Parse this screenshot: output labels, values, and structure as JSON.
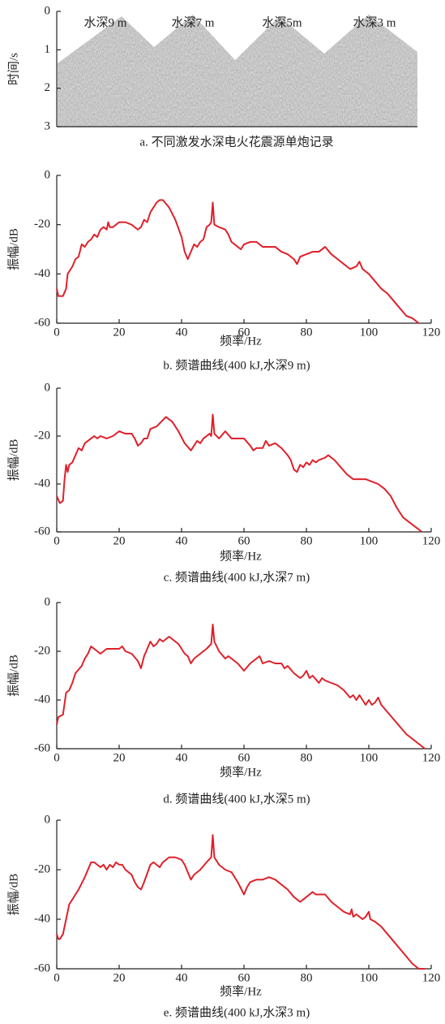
{
  "chart_data": [
    {
      "type": "image",
      "ylabel": "时间/s",
      "ylim": [
        0,
        3
      ],
      "yticks": [
        0,
        1,
        2,
        3
      ],
      "annotations": [
        "水深9 m",
        "水深7 m",
        "水深5m",
        "水深3 m"
      ],
      "caption": "a. 不同激发水深电火花震源单炮记录"
    },
    {
      "type": "line",
      "xlabel": "频率/Hz",
      "ylabel": "振幅/dB",
      "caption": "b. 频谱曲线(400 kJ,水深9 m)",
      "color": "#e0202a",
      "xlim": [
        0,
        120
      ],
      "xticks": [
        0,
        20,
        40,
        60,
        80,
        100,
        120
      ],
      "ylim": [
        -60,
        0
      ],
      "yticks": [
        0,
        -20,
        -40,
        -60
      ],
      "x": [
        0,
        0.5,
        2,
        3,
        3.5,
        5,
        6,
        7,
        8,
        9,
        10,
        11,
        12,
        13,
        14,
        15,
        16,
        16.5,
        17,
        18,
        20,
        22,
        24,
        26,
        27,
        28,
        29,
        30,
        32,
        33,
        34,
        36,
        38,
        40,
        41,
        42,
        43,
        44,
        45,
        46,
        47,
        48,
        49,
        49.5,
        50,
        50.5,
        52,
        54,
        55,
        56,
        58,
        59,
        60,
        62,
        64,
        65,
        66,
        68,
        70,
        72,
        74,
        76,
        77,
        78,
        80,
        82,
        84,
        86,
        88,
        90,
        92,
        94,
        96,
        97,
        98,
        100,
        102,
        104,
        106,
        108,
        110,
        112,
        114,
        116
      ],
      "values": [
        -46,
        -49,
        -49,
        -46,
        -40,
        -37,
        -34,
        -33,
        -28,
        -29,
        -27,
        -26,
        -24,
        -25,
        -22,
        -21,
        -22,
        -19,
        -21,
        -21,
        -19,
        -19,
        -20,
        -22,
        -21,
        -18,
        -19,
        -15,
        -11,
        -10,
        -10,
        -13,
        -18,
        -25,
        -31,
        -34,
        -31,
        -28,
        -29,
        -27,
        -26,
        -21,
        -20,
        -19,
        -11,
        -20,
        -21,
        -22,
        -24,
        -27,
        -29,
        -30,
        -28,
        -27,
        -27,
        -28,
        -29,
        -29,
        -29,
        -31,
        -32,
        -34,
        -36,
        -33,
        -32,
        -31,
        -31,
        -29,
        -32,
        -34,
        -36,
        -38,
        -37,
        -35,
        -38,
        -40,
        -43,
        -46,
        -48,
        -51,
        -54,
        -57,
        -58,
        -60
      ]
    },
    {
      "type": "line",
      "xlabel": "频率/Hz",
      "ylabel": "振幅/dB",
      "caption": "c. 频谱曲线(400 kJ,水深7 m)",
      "color": "#e0202a",
      "xlim": [
        0,
        120
      ],
      "xticks": [
        0,
        20,
        40,
        60,
        80,
        100,
        120
      ],
      "ylim": [
        -60,
        0
      ],
      "yticks": [
        0,
        -20,
        -40,
        -60
      ],
      "x": [
        0,
        1,
        2,
        2.5,
        3,
        3.5,
        4,
        5,
        6,
        7,
        8,
        9,
        10,
        11,
        12,
        13,
        14,
        16,
        18,
        20,
        22,
        24,
        25,
        26,
        27,
        28,
        29,
        30,
        32,
        35,
        37,
        39,
        41,
        43,
        44,
        45,
        46,
        47,
        48,
        49,
        49.5,
        50,
        50.5,
        52,
        54,
        56,
        58,
        60,
        62,
        63,
        64,
        66,
        67,
        68,
        70,
        72,
        74,
        75,
        76,
        77,
        78,
        79,
        80,
        81,
        82,
        83,
        84,
        86,
        87,
        89,
        91,
        93,
        95,
        97,
        99,
        101,
        103,
        105,
        107,
        109,
        111,
        113,
        115,
        117
      ],
      "values": [
        -45,
        -48,
        -47,
        -38,
        -32,
        -35,
        -32,
        -31,
        -28,
        -25,
        -26,
        -23,
        -22,
        -21,
        -20,
        -21,
        -20,
        -21,
        -20,
        -18,
        -19,
        -19,
        -21,
        -24,
        -23,
        -21,
        -21,
        -17,
        -16,
        -12,
        -14,
        -18,
        -23,
        -26,
        -24,
        -22,
        -23,
        -21,
        -20,
        -19,
        -20,
        -11,
        -19,
        -21,
        -18,
        -21,
        -21,
        -21,
        -24,
        -26,
        -25,
        -25,
        -22,
        -24,
        -23,
        -25,
        -28,
        -30,
        -34,
        -35,
        -32,
        -33,
        -31,
        -32,
        -30,
        -31,
        -30,
        -29,
        -28,
        -30,
        -33,
        -36,
        -38,
        -38,
        -38,
        -39,
        -40,
        -42,
        -45,
        -50,
        -54,
        -56,
        -58,
        -60
      ]
    },
    {
      "type": "line",
      "xlabel": "频率/Hz",
      "ylabel": "振幅/dB",
      "caption": "d. 频谱曲线(400 kJ,水深5 m)",
      "color": "#e0202a",
      "xlim": [
        0,
        120
      ],
      "xticks": [
        0,
        20,
        40,
        60,
        80,
        100,
        120
      ],
      "ylim": [
        -60,
        0
      ],
      "yticks": [
        0,
        -20,
        -40,
        -60
      ],
      "x": [
        0,
        0.5,
        2,
        3,
        4,
        5,
        6,
        8,
        9,
        10,
        11,
        12,
        14,
        15,
        16,
        18,
        20,
        21,
        22,
        24,
        26,
        27,
        28,
        29,
        30,
        31,
        32,
        33,
        34,
        35,
        36,
        37,
        38,
        39,
        40,
        41,
        42,
        43,
        44,
        46,
        48,
        49.5,
        50,
        50.5,
        52,
        54,
        55,
        56,
        58,
        60,
        62,
        64,
        65,
        66,
        68,
        70,
        72,
        73,
        74,
        76,
        78,
        79,
        80,
        81,
        82,
        84,
        85,
        86,
        88,
        90,
        92,
        94,
        95,
        96,
        97,
        98,
        99,
        100,
        101,
        102,
        103,
        104,
        106,
        108,
        110,
        112,
        113,
        114,
        116,
        118
      ],
      "values": [
        -50,
        -47,
        -46,
        -37,
        -36,
        -33,
        -29,
        -26,
        -23,
        -21,
        -18,
        -19,
        -21,
        -20,
        -19,
        -19,
        -19,
        -18,
        -20,
        -21,
        -24,
        -27,
        -22,
        -19,
        -16,
        -18,
        -17,
        -15,
        -16,
        -15,
        -14,
        -15,
        -16,
        -17,
        -19,
        -21,
        -22,
        -25,
        -23,
        -21,
        -19,
        -17,
        -9,
        -16,
        -20,
        -23,
        -22,
        -23,
        -25,
        -28,
        -25,
        -23,
        -22,
        -25,
        -24,
        -25,
        -25,
        -27,
        -26,
        -29,
        -31,
        -30,
        -28,
        -31,
        -30,
        -33,
        -31,
        -32,
        -33,
        -34,
        -36,
        -39,
        -38,
        -40,
        -38,
        -40,
        -42,
        -40,
        -42,
        -41,
        -39,
        -42,
        -45,
        -48,
        -51,
        -54,
        -55,
        -56,
        -58,
        -60
      ]
    },
    {
      "type": "line",
      "xlabel": "频率/Hz",
      "ylabel": "振幅/dB",
      "caption": "e. 频谱曲线(400 kJ,水深3 m)",
      "color": "#e0202a",
      "xlim": [
        0,
        120
      ],
      "xticks": [
        0,
        20,
        40,
        60,
        80,
        100,
        120
      ],
      "ylim": [
        -60,
        0
      ],
      "yticks": [
        0,
        -20,
        -40,
        -60
      ],
      "x": [
        0,
        0.5,
        1,
        2,
        3,
        4,
        5,
        7,
        9,
        11,
        12,
        13,
        14,
        15,
        16,
        17,
        18,
        19,
        20,
        21,
        22,
        23,
        24,
        25,
        26,
        27,
        28,
        30,
        31,
        32,
        33,
        34,
        36,
        38,
        40,
        41,
        42,
        43,
        44,
        46,
        48,
        49.5,
        50,
        50.5,
        52,
        54,
        56,
        58,
        60,
        61,
        62,
        64,
        66,
        68,
        70,
        72,
        74,
        76,
        78,
        80,
        82,
        83,
        86,
        88,
        90,
        92,
        94,
        94.5,
        95,
        96,
        98,
        99,
        100,
        100.5,
        102,
        104,
        106,
        108,
        110,
        112,
        114,
        116,
        118
      ],
      "values": [
        -46,
        -48,
        -48,
        -46,
        -40,
        -34,
        -32,
        -28,
        -23,
        -17,
        -17,
        -18,
        -19,
        -18,
        -20,
        -18,
        -19,
        -17,
        -18,
        -18,
        -20,
        -21,
        -22,
        -25,
        -27,
        -28,
        -25,
        -18,
        -17,
        -18,
        -19,
        -17,
        -15,
        -15,
        -16,
        -18,
        -21,
        -24,
        -22,
        -20,
        -17,
        -15,
        -6,
        -15,
        -18,
        -20,
        -21,
        -25,
        -30,
        -27,
        -25,
        -24,
        -24,
        -23,
        -24,
        -26,
        -28,
        -31,
        -33,
        -31,
        -29,
        -30,
        -30,
        -33,
        -35,
        -37,
        -38,
        -36,
        -39,
        -38,
        -40,
        -39,
        -37,
        -40,
        -41,
        -43,
        -46,
        -49,
        -52,
        -55,
        -58,
        -60,
        -60
      ]
    }
  ]
}
